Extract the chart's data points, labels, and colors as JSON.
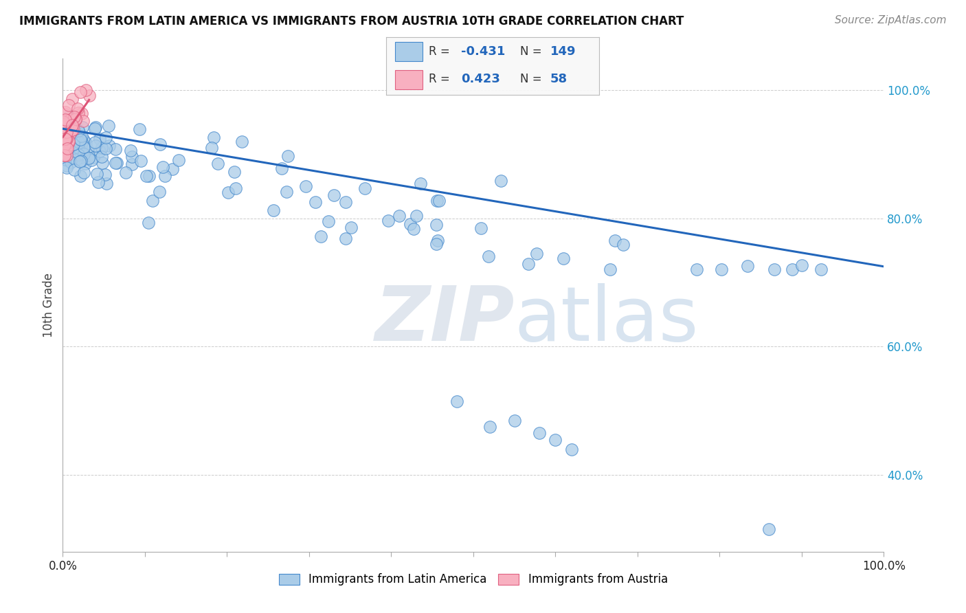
{
  "title": "IMMIGRANTS FROM LATIN AMERICA VS IMMIGRANTS FROM AUSTRIA 10TH GRADE CORRELATION CHART",
  "source": "Source: ZipAtlas.com",
  "ylabel": "10th Grade",
  "R_blue": -0.431,
  "N_blue": 149,
  "R_pink": 0.423,
  "N_pink": 58,
  "blue_color": "#aacce8",
  "blue_edge_color": "#4488cc",
  "blue_line_color": "#2266bb",
  "pink_color": "#f8b0c0",
  "pink_edge_color": "#e06080",
  "pink_line_color": "#dd5577",
  "legend_label_blue": "Immigrants from Latin America",
  "legend_label_pink": "Immigrants from Austria",
  "watermark_zip": "ZIP",
  "watermark_atlas": "atlas",
  "xlim": [
    0.0,
    1.0
  ],
  "ylim": [
    0.28,
    1.05
  ],
  "yticks": [
    0.4,
    0.6,
    0.8,
    1.0
  ],
  "ytick_labels": [
    "40.0%",
    "60.0%",
    "80.0%",
    "100.0%"
  ],
  "blue_line_y0": 0.94,
  "blue_line_y1": 0.725,
  "pink_line_x0": 0.0,
  "pink_line_x1": 0.032,
  "pink_line_y0": 0.927,
  "pink_line_y1": 0.985,
  "title_fontsize": 12,
  "source_fontsize": 11,
  "tick_fontsize": 12,
  "legend_fontsize": 12
}
